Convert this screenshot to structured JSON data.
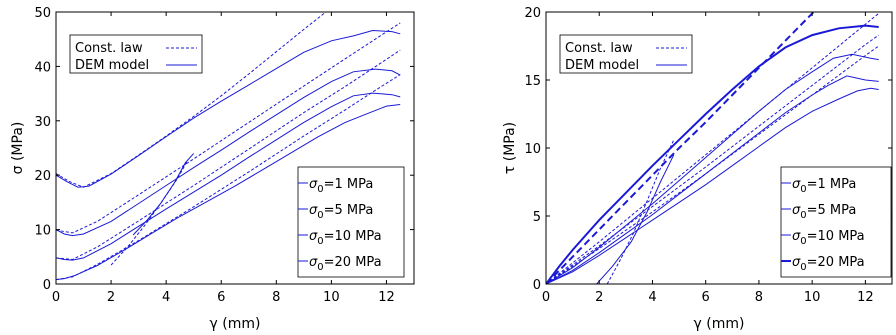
{
  "chart_data": [
    {
      "type": "line",
      "xlabel": "γ (mm)",
      "ylabel": "σ (MPa)",
      "xlim": [
        0,
        13
      ],
      "ylim": [
        0,
        50
      ],
      "xticks": [
        0,
        2,
        4,
        6,
        8,
        10,
        12
      ],
      "yticks": [
        0,
        10,
        20,
        30,
        40,
        50
      ],
      "grid": false,
      "legend_style": {
        "placement": "top-left",
        "entries": [
          {
            "label": "Const. law",
            "style": "dashed"
          },
          {
            "label": "DEM model",
            "style": "solid"
          }
        ]
      },
      "legend_sigma": {
        "placement": "bottom-right",
        "entries": [
          "=1 MPa",
          "=5 MPa",
          "=10 MPa",
          "=20 MPa"
        ]
      },
      "series": [
        {
          "kind": "dem",
          "level": "1 MPa",
          "points": [
            [
              0,
              0.8
            ],
            [
              0.3,
              1.0
            ],
            [
              0.7,
              1.6
            ],
            [
              1.5,
              3.4
            ],
            [
              2.5,
              6.3
            ],
            [
              3.5,
              9.4
            ],
            [
              4.5,
              12.4
            ],
            [
              5.5,
              15.2
            ],
            [
              6.5,
              18.0
            ],
            [
              7.5,
              21.0
            ],
            [
              8.5,
              24.0
            ],
            [
              9.5,
              27.0
            ],
            [
              10.5,
              29.7
            ],
            [
              11.3,
              31.3
            ],
            [
              12.0,
              32.7
            ],
            [
              12.5,
              33.0
            ]
          ]
        },
        {
          "kind": "law",
          "level": "1 MPa",
          "points": [
            [
              0,
              0.8
            ],
            [
              0.6,
              1.3
            ],
            [
              1.5,
              3.6
            ],
            [
              3,
              8.0
            ],
            [
              5,
              14.2
            ],
            [
              7,
              20.6
            ],
            [
              9,
              27.2
            ],
            [
              10.5,
              32.0
            ],
            [
              11.5,
              35.3
            ],
            [
              12.5,
              38.5
            ]
          ]
        },
        {
          "kind": "dem",
          "level": "5 MPa",
          "points": [
            [
              0,
              4.8
            ],
            [
              0.3,
              4.5
            ],
            [
              0.6,
              4.4
            ],
            [
              1,
              4.8
            ],
            [
              2,
              7.4
            ],
            [
              3,
              10.6
            ],
            [
              4,
              13.8
            ],
            [
              5,
              16.9
            ],
            [
              6,
              20.0
            ],
            [
              7,
              23.3
            ],
            [
              8,
              26.5
            ],
            [
              9,
              29.7
            ],
            [
              10,
              32.6
            ],
            [
              10.8,
              34.6
            ],
            [
              11.5,
              35.1
            ],
            [
              12.2,
              34.8
            ],
            [
              12.5,
              34.4
            ]
          ]
        },
        {
          "kind": "law",
          "level": "5 MPa",
          "points": [
            [
              0,
              4.8
            ],
            [
              0.6,
              4.5
            ],
            [
              1.5,
              6.8
            ],
            [
              3,
              11.6
            ],
            [
              5,
              18.1
            ],
            [
              7,
              24.8
            ],
            [
              9,
              31.5
            ],
            [
              10.5,
              36.3
            ],
            [
              12.0,
              41.3
            ],
            [
              12.5,
              43.0
            ]
          ]
        },
        {
          "kind": "dem",
          "level": "10 MPa",
          "points": [
            [
              0,
              10.0
            ],
            [
              0.3,
              9.2
            ],
            [
              0.6,
              8.9
            ],
            [
              1,
              9.2
            ],
            [
              2,
              11.5
            ],
            [
              3,
              14.8
            ],
            [
              4,
              18.1
            ],
            [
              5,
              21.4
            ],
            [
              6,
              24.6
            ],
            [
              7,
              27.9
            ],
            [
              8,
              31.1
            ],
            [
              9,
              34.3
            ],
            [
              10,
              37.2
            ],
            [
              10.8,
              39.0
            ],
            [
              11.6,
              39.5
            ],
            [
              12.2,
              39.2
            ],
            [
              12.5,
              38.4
            ]
          ]
        },
        {
          "kind": "law",
          "level": "10 MPa",
          "points": [
            [
              0,
              9.9
            ],
            [
              0.6,
              9.4
            ],
            [
              1.5,
              11.5
            ],
            [
              3,
              16.4
            ],
            [
              5,
              23.0
            ],
            [
              7,
              29.7
            ],
            [
              9,
              36.4
            ],
            [
              10.5,
              41.4
            ],
            [
              11.5,
              44.7
            ],
            [
              12.5,
              48.0
            ]
          ]
        },
        {
          "kind": "dem",
          "level": "20 MPa",
          "points": [
            [
              0,
              20.0
            ],
            [
              0.4,
              18.8
            ],
            [
              0.8,
              17.8
            ],
            [
              1.2,
              18.0
            ],
            [
              2,
              20.2
            ],
            [
              3,
              23.6
            ],
            [
              4,
              27.1
            ],
            [
              5,
              30.5
            ],
            [
              6,
              33.6
            ],
            [
              7,
              36.6
            ],
            [
              8,
              39.6
            ],
            [
              9,
              42.6
            ],
            [
              10,
              44.7
            ],
            [
              10.8,
              45.6
            ],
            [
              11.5,
              46.6
            ],
            [
              12.2,
              46.4
            ],
            [
              12.5,
              46.0
            ]
          ]
        },
        {
          "kind": "law",
          "level": "20 MPa",
          "points": [
            [
              0,
              20.3
            ],
            [
              0.5,
              18.8
            ],
            [
              1,
              17.8
            ],
            [
              2,
              20.3
            ],
            [
              3,
              23.7
            ],
            [
              4,
              27.2
            ],
            [
              5,
              30.8
            ],
            [
              6,
              34.6
            ],
            [
              7,
              38.6
            ],
            [
              8,
              42.7
            ],
            [
              9,
              46.8
            ],
            [
              9.8,
              50.0
            ]
          ]
        },
        {
          "kind": "law",
          "level": "initial",
          "points": [
            [
              2.0,
              3.5
            ],
            [
              2.6,
              6.8
            ],
            [
              3.2,
              10.6
            ],
            [
              3.8,
              14.8
            ],
            [
              4.4,
              19.3
            ],
            [
              4.8,
              22.9
            ]
          ]
        },
        {
          "kind": "dem",
          "level": "initial",
          "points": [
            [
              2.8,
              9.0
            ],
            [
              3.3,
              11.7
            ],
            [
              3.8,
              14.8
            ],
            [
              4.3,
              18.6
            ],
            [
              4.7,
              22.3
            ],
            [
              5.0,
              24.0
            ]
          ]
        }
      ]
    },
    {
      "type": "line",
      "xlabel": "γ (mm)",
      "ylabel": "τ (MPa)",
      "xlim": [
        0,
        13
      ],
      "ylim": [
        0,
        20
      ],
      "xticks": [
        0,
        2,
        4,
        6,
        8,
        10,
        12
      ],
      "yticks": [
        0,
        5,
        10,
        15,
        20
      ],
      "grid": false,
      "legend_style": {
        "placement": "top-left",
        "entries": [
          {
            "label": "Const. law",
            "style": "dashed"
          },
          {
            "label": "DEM model",
            "style": "solid"
          }
        ]
      },
      "legend_sigma": {
        "placement": "bottom-right",
        "entries": [
          "=1 MPa",
          "=5 MPa",
          "=10 MPa",
          "=20 MPa"
        ]
      },
      "series": [
        {
          "kind": "dem",
          "level": "1 MPa",
          "points": [
            [
              0,
              0
            ],
            [
              1,
              0.9
            ],
            [
              2,
              2.1
            ],
            [
              3,
              3.4
            ],
            [
              4,
              4.7
            ],
            [
              5,
              6.0
            ],
            [
              6,
              7.3
            ],
            [
              7,
              8.7
            ],
            [
              8,
              10.1
            ],
            [
              9,
              11.5
            ],
            [
              10,
              12.7
            ],
            [
              11,
              13.6
            ],
            [
              11.7,
              14.2
            ],
            [
              12.2,
              14.4
            ],
            [
              12.5,
              14.3
            ]
          ]
        },
        {
          "kind": "law",
          "level": "1 MPa",
          "points": [
            [
              0,
              0
            ],
            [
              2,
              2.6
            ],
            [
              4,
              5.3
            ],
            [
              6,
              8.1
            ],
            [
              8,
              11.0
            ],
            [
              10,
              13.9
            ],
            [
              12,
              16.8
            ],
            [
              12.5,
              17.5
            ]
          ]
        },
        {
          "kind": "dem",
          "level": "5 MPa",
          "points": [
            [
              0,
              0
            ],
            [
              1,
              1.0
            ],
            [
              2,
              2.3
            ],
            [
              3,
              3.7
            ],
            [
              4,
              5.1
            ],
            [
              5,
              6.6
            ],
            [
              6,
              8.1
            ],
            [
              7,
              9.6
            ],
            [
              8,
              11.1
            ],
            [
              9,
              12.6
            ],
            [
              10,
              13.9
            ],
            [
              10.6,
              14.6
            ],
            [
              11.3,
              15.3
            ],
            [
              12,
              15.0
            ],
            [
              12.5,
              14.9
            ]
          ]
        },
        {
          "kind": "law",
          "level": "5 MPa",
          "points": [
            [
              0,
              0
            ],
            [
              2,
              2.8
            ],
            [
              4,
              5.7
            ],
            [
              6,
              8.6
            ],
            [
              8,
              11.6
            ],
            [
              10,
              14.6
            ],
            [
              12,
              17.6
            ],
            [
              12.5,
              18.3
            ]
          ]
        },
        {
          "kind": "dem",
          "level": "10 MPa",
          "points": [
            [
              0,
              0
            ],
            [
              1,
              1.2
            ],
            [
              2,
              2.7
            ],
            [
              3,
              4.3
            ],
            [
              4,
              5.9
            ],
            [
              5,
              7.6
            ],
            [
              6,
              9.3
            ],
            [
              7,
              11.0
            ],
            [
              8,
              12.7
            ],
            [
              9,
              14.3
            ],
            [
              10,
              15.6
            ],
            [
              10.8,
              16.6
            ],
            [
              11.5,
              16.9
            ],
            [
              12.2,
              16.6
            ],
            [
              12.5,
              16.5
            ]
          ]
        },
        {
          "kind": "law",
          "level": "10 MPa",
          "points": [
            [
              0,
              0
            ],
            [
              2,
              3.1
            ],
            [
              4,
              6.3
            ],
            [
              6,
              9.5
            ],
            [
              8,
              12.7
            ],
            [
              10,
              15.9
            ],
            [
              12,
              19.1
            ],
            [
              12.5,
              19.9
            ]
          ]
        },
        {
          "kind": "dem",
          "level": "20 MPa",
          "points": [
            [
              0,
              0
            ],
            [
              0.5,
              1.3
            ],
            [
              1,
              2.5
            ],
            [
              2,
              4.7
            ],
            [
              3,
              6.7
            ],
            [
              4,
              8.7
            ],
            [
              5,
              10.6
            ],
            [
              6,
              12.5
            ],
            [
              7,
              14.3
            ],
            [
              8,
              16.0
            ],
            [
              9,
              17.4
            ],
            [
              10,
              18.3
            ],
            [
              11,
              18.8
            ],
            [
              12,
              19.0
            ],
            [
              12.5,
              18.9
            ]
          ]
        },
        {
          "kind": "law",
          "level": "20 MPa",
          "points": [
            [
              0,
              0
            ],
            [
              1,
              2.0
            ],
            [
              2,
              4.0
            ],
            [
              3,
              6.0
            ],
            [
              4,
              8.0
            ],
            [
              5,
              10.0
            ],
            [
              6,
              11.9
            ],
            [
              7,
              13.9
            ],
            [
              8,
              15.9
            ],
            [
              9,
              17.9
            ],
            [
              10,
              19.9
            ],
            [
              10.05,
              20.0
            ]
          ]
        },
        {
          "kind": "law",
          "level": "initial",
          "points": [
            [
              2.3,
              0
            ],
            [
              2.8,
              1.8
            ],
            [
              3.3,
              3.8
            ],
            [
              3.8,
              6.1
            ],
            [
              4.3,
              8.5
            ],
            [
              4.8,
              10.6
            ]
          ]
        },
        {
          "kind": "dem",
          "level": "initial",
          "points": [
            [
              1.9,
              0
            ],
            [
              2.5,
              1.3
            ],
            [
              3.2,
              3.1
            ],
            [
              3.8,
              5.3
            ],
            [
              4.3,
              7.5
            ],
            [
              4.8,
              9.5
            ]
          ]
        }
      ]
    }
  ]
}
